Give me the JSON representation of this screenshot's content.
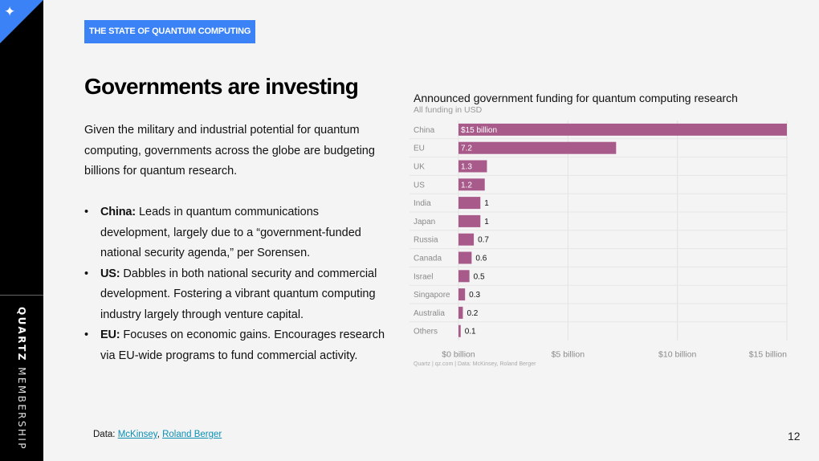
{
  "brand": {
    "name_bold": "QUARTZ",
    "name_light": "MEMBERSHIP",
    "corner_icon": "sparkle-icon"
  },
  "section_tag": "THE STATE OF QUANTUM COMPUTING",
  "title": "Governments are investing",
  "intro": "Given the military and industrial potential for quantum computing, governments across the globe are budgeting billions for quantum research.",
  "bullets": [
    {
      "label": "China:",
      "text": " Leads in quantum communications development, largely due to a “government-funded national security agenda,” per Sorensen."
    },
    {
      "label": "US:",
      "text": " Dabbles in both national security and commercial development. Fostering a vibrant quantum computing industry largely through venture capital."
    },
    {
      "label": "EU:",
      "text": " Focuses on economic gains. Encourages research via EU-wide programs to fund commercial activity."
    }
  ],
  "source": {
    "prefix": "Data: ",
    "links": [
      "McKinsey",
      "Roland Berger"
    ],
    "separator": ", "
  },
  "page_number": "12",
  "chart_credit": "Quartz | qz.com | Data: McKinsey, Roland Berger",
  "chart_data": {
    "type": "bar",
    "orientation": "horizontal",
    "title": "Announced government funding for quantum computing research",
    "subtitle": "All funding in USD",
    "categories": [
      "China",
      "EU",
      "UK",
      "US",
      "India",
      "Japan",
      "Russia",
      "Canada",
      "Israel",
      "Singapore",
      "Australia",
      "Others"
    ],
    "values": [
      15,
      7.2,
      1.3,
      1.2,
      1,
      1,
      0.7,
      0.6,
      0.5,
      0.3,
      0.2,
      0.1
    ],
    "value_labels": [
      "$15 billion",
      "7.2",
      "1.3",
      "1.2",
      "1",
      "1",
      "0.7",
      "0.6",
      "0.5",
      "0.3",
      "0.2",
      "0.1"
    ],
    "x_ticks": [
      0,
      5,
      10,
      15
    ],
    "x_tick_labels": [
      "$0 billion",
      "$5 billion",
      "$10 billion",
      "$15 billion"
    ],
    "xlim": [
      0,
      15
    ],
    "bar_color": "#a85a8a",
    "grid": true
  }
}
